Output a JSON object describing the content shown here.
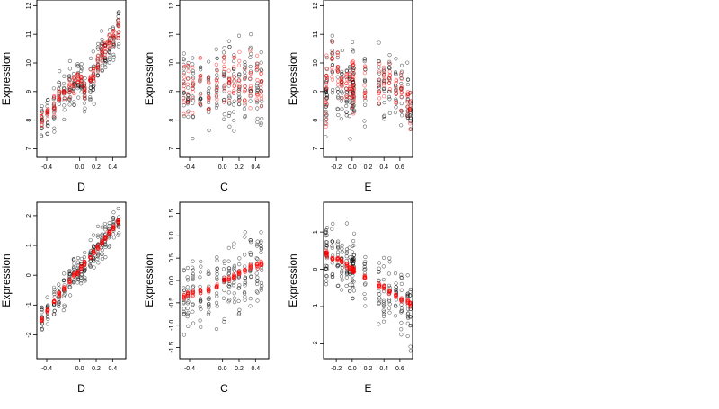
{
  "colors": {
    "observed": "#000000",
    "fitted": "#ff0000",
    "background": "#ffffff"
  },
  "chart_data": [
    {
      "id": "p1",
      "type": "scatter",
      "row": 0,
      "col": 0,
      "xlabel": "D",
      "ylabel": "Expression",
      "xlim": [
        -0.52,
        0.56
      ],
      "ylim": [
        6.7,
        12.2
      ],
      "xticks": [
        -0.4,
        0.0,
        0.2,
        0.4
      ],
      "xtick_labels": [
        "-0.4",
        "0.0",
        "0.2",
        "0.4"
      ],
      "yticks": [
        7,
        8,
        9,
        10,
        11,
        12
      ],
      "ytick_labels": [
        "7",
        "8",
        "9",
        "10",
        "11",
        "12"
      ],
      "groups_x": [
        -0.46,
        -0.39,
        -0.31,
        -0.25,
        -0.19,
        -0.12,
        -0.07,
        -0.02,
        0.02,
        0.06,
        0.13,
        0.17,
        0.22,
        0.27,
        0.31,
        0.36,
        0.41,
        0.47
      ],
      "observed_center": [
        8.0,
        8.1,
        8.5,
        8.8,
        8.9,
        9.1,
        9.3,
        9.3,
        9.2,
        9.0,
        9.3,
        9.5,
        9.9,
        10.3,
        10.4,
        10.7,
        10.9,
        11.2
      ],
      "fitted_center": [
        7.9,
        8.2,
        8.5,
        8.8,
        8.9,
        9.1,
        9.3,
        9.4,
        9.2,
        9.0,
        9.4,
        9.6,
        10.0,
        10.3,
        10.5,
        10.8,
        10.9,
        11.2
      ],
      "observed_spread": 0.7,
      "fitted_spread": 0.4,
      "n_observed": 14,
      "n_fitted": 9
    },
    {
      "id": "p2",
      "type": "scatter",
      "row": 0,
      "col": 1,
      "xlabel": "C",
      "ylabel": "Expression",
      "xlim": [
        -0.52,
        0.56
      ],
      "ylim": [
        6.7,
        12.2
      ],
      "xticks": [
        -0.4,
        0.0,
        0.2,
        0.4
      ],
      "xtick_labels": [
        "-0.4",
        "0.0",
        "0.2",
        "0.4"
      ],
      "yticks": [
        7,
        8,
        9,
        10,
        11,
        12
      ],
      "ytick_labels": [
        "7",
        "8",
        "9",
        "10",
        "11",
        "12"
      ],
      "groups_x": [
        -0.47,
        -0.42,
        -0.36,
        -0.27,
        -0.17,
        -0.07,
        0.02,
        0.08,
        0.14,
        0.2,
        0.27,
        0.34,
        0.42,
        0.47
      ],
      "observed_center": [
        9.0,
        9.0,
        9.1,
        9.2,
        9.1,
        9.2,
        9.3,
        9.1,
        9.3,
        9.4,
        9.2,
        9.3,
        9.4,
        9.3
      ],
      "fitted_center": [
        9.1,
        9.0,
        9.2,
        9.3,
        9.0,
        9.3,
        9.4,
        9.2,
        9.6,
        9.5,
        9.3,
        9.4,
        9.5,
        9.3
      ],
      "observed_spread": 1.3,
      "fitted_spread": 1.1,
      "n_observed": 14,
      "n_fitted": 9
    },
    {
      "id": "p3",
      "type": "scatter",
      "row": 0,
      "col": 2,
      "xlabel": "E",
      "ylabel": "Expression",
      "xlim": [
        -0.36,
        0.76
      ],
      "ylim": [
        6.7,
        12.2
      ],
      "xticks": [
        -0.2,
        0.0,
        0.2,
        0.4,
        0.6
      ],
      "xtick_labels": [
        "-0.2",
        "0.0",
        "0.2",
        "0.4",
        "0.6"
      ],
      "yticks": [
        7,
        8,
        9,
        10,
        11,
        12
      ],
      "ytick_labels": [
        "7",
        "8",
        "9",
        "10",
        "11",
        "12"
      ],
      "groups_x": [
        -0.33,
        -0.32,
        -0.25,
        -0.18,
        -0.13,
        -0.07,
        -0.03,
        0.0,
        0.01,
        0.02,
        0.16,
        0.34,
        0.4,
        0.47,
        0.55,
        0.62,
        0.7,
        0.73
      ],
      "observed_center": [
        8.6,
        9.0,
        9.6,
        9.5,
        9.1,
        9.0,
        9.0,
        9.2,
        9.5,
        9.0,
        9.2,
        9.2,
        9.3,
        9.4,
        9.1,
        9.0,
        8.6,
        8.3
      ],
      "fitted_center": [
        8.5,
        9.6,
        10.0,
        9.7,
        9.3,
        9.2,
        9.1,
        9.2,
        9.6,
        9.0,
        9.3,
        9.3,
        9.4,
        9.4,
        9.1,
        9.0,
        8.6,
        8.3
      ],
      "observed_spread": 1.2,
      "fitted_spread": 0.9,
      "n_observed": 14,
      "n_fitted": 9
    },
    {
      "id": "p4",
      "type": "scatter",
      "row": 1,
      "col": 0,
      "xlabel": "D",
      "ylabel": "Expression",
      "xlim": [
        -0.52,
        0.56
      ],
      "ylim": [
        -2.8,
        2.45
      ],
      "xticks": [
        -0.4,
        0.0,
        0.2,
        0.4
      ],
      "xtick_labels": [
        "-0.4",
        "0.0",
        "0.2",
        "0.4"
      ],
      "yticks": [
        -2,
        -1,
        0,
        1,
        2
      ],
      "ytick_labels": [
        "-2",
        "-1",
        "0",
        "1",
        "2"
      ],
      "groups_x": [
        -0.46,
        -0.39,
        -0.31,
        -0.25,
        -0.19,
        -0.12,
        -0.07,
        -0.02,
        0.02,
        0.06,
        0.13,
        0.17,
        0.22,
        0.27,
        0.31,
        0.36,
        0.41,
        0.47
      ],
      "observed_center": [
        -1.5,
        -1.2,
        -0.9,
        -0.7,
        -0.5,
        -0.2,
        0.0,
        0.1,
        0.2,
        0.3,
        0.5,
        0.7,
        0.9,
        1.1,
        1.2,
        1.4,
        1.6,
        1.8
      ],
      "fitted_center": [
        -1.5,
        -1.2,
        -0.9,
        -0.65,
        -0.45,
        -0.2,
        0.0,
        0.1,
        0.25,
        0.4,
        0.6,
        0.75,
        0.95,
        1.1,
        1.25,
        1.45,
        1.6,
        1.8
      ],
      "observed_spread": 0.55,
      "fitted_spread": 0.08,
      "n_observed": 14,
      "n_fitted": 9
    },
    {
      "id": "p5",
      "type": "scatter",
      "row": 1,
      "col": 1,
      "xlabel": "C",
      "ylabel": "Expression",
      "xlim": [
        -0.52,
        0.56
      ],
      "ylim": [
        -1.75,
        1.75
      ],
      "xticks": [
        -0.4,
        0.0,
        0.2,
        0.4
      ],
      "xtick_labels": [
        "-0.4",
        "0.0",
        "0.2",
        "0.4"
      ],
      "yticks": [
        -1.5,
        -1.0,
        -0.5,
        0.0,
        0.5,
        1.0,
        1.5
      ],
      "ytick_labels": [
        "-1.5",
        "-1.0",
        "-0.5",
        "0.0",
        "0.5",
        "1.0",
        "1.5"
      ],
      "groups_x": [
        -0.47,
        -0.42,
        -0.36,
        -0.27,
        -0.17,
        -0.07,
        0.02,
        0.08,
        0.14,
        0.2,
        0.27,
        0.34,
        0.42,
        0.47
      ],
      "observed_center": [
        -0.35,
        -0.3,
        -0.28,
        -0.25,
        -0.2,
        -0.12,
        0.05,
        0.0,
        0.1,
        0.15,
        0.2,
        0.25,
        0.3,
        0.35
      ],
      "fitted_center": [
        -0.35,
        -0.32,
        -0.28,
        -0.25,
        -0.2,
        -0.12,
        0.0,
        0.05,
        0.1,
        0.18,
        0.22,
        0.28,
        0.32,
        0.38
      ],
      "observed_spread": 0.8,
      "fitted_spread": 0.08,
      "n_observed": 14,
      "n_fitted": 9
    },
    {
      "id": "p6",
      "type": "scatter",
      "row": 1,
      "col": 2,
      "xlabel": "E",
      "ylabel": "Expression",
      "xlim": [
        -0.36,
        0.76
      ],
      "ylim": [
        -2.4,
        1.8
      ],
      "xticks": [
        -0.2,
        0.0,
        0.2,
        0.4,
        0.6
      ],
      "xtick_labels": [
        "-0.2",
        "0.0",
        "0.2",
        "0.4",
        "0.6"
      ],
      "yticks": [
        -2,
        -1,
        0,
        1
      ],
      "ytick_labels": [
        "-2",
        "-1",
        "0",
        "1"
      ],
      "groups_x": [
        -0.33,
        -0.32,
        -0.25,
        -0.18,
        -0.13,
        -0.07,
        -0.03,
        0.0,
        0.01,
        0.02,
        0.16,
        0.34,
        0.4,
        0.47,
        0.55,
        0.62,
        0.7,
        0.73
      ],
      "observed_center": [
        0.4,
        0.4,
        0.3,
        0.3,
        0.2,
        0.1,
        0.05,
        0.0,
        0.0,
        0.0,
        -0.2,
        -0.4,
        -0.5,
        -0.6,
        -0.7,
        -0.8,
        -0.9,
        -1.0
      ],
      "fitted_center": [
        0.45,
        0.4,
        0.3,
        0.28,
        0.22,
        0.12,
        0.05,
        0.0,
        -0.02,
        -0.05,
        -0.2,
        -0.45,
        -0.5,
        -0.6,
        -0.7,
        -0.8,
        -0.85,
        -0.95
      ],
      "observed_spread": 0.9,
      "fitted_spread": 0.08,
      "n_observed": 14,
      "n_fitted": 9
    }
  ]
}
